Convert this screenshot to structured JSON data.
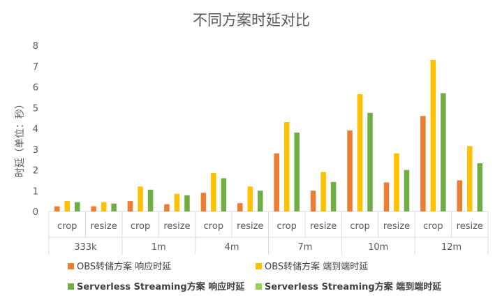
{
  "chart_data": {
    "type": "bar",
    "title": "不同方案时延对比",
    "ylabel": "时延（单位：秒）",
    "ylim": [
      0,
      8
    ],
    "yticks": [
      0,
      1,
      2,
      3,
      4,
      5,
      6,
      7,
      8
    ],
    "groups": [
      "333k",
      "1m",
      "4m",
      "7m",
      "10m",
      "12m"
    ],
    "subcategories": [
      "crop",
      "resize"
    ],
    "series": [
      {
        "name": "OBS转储方案 响应时延",
        "color": "#ED7D31",
        "values": [
          0.25,
          0.25,
          0.5,
          0.35,
          0.9,
          0.4,
          2.8,
          1.0,
          3.9,
          1.4,
          4.6,
          1.5
        ]
      },
      {
        "name": "OBS转储方案 端到端时延",
        "color": "#FFC000",
        "values": [
          0.5,
          0.45,
          1.2,
          0.85,
          1.85,
          1.2,
          4.3,
          1.9,
          5.65,
          2.8,
          7.3,
          3.15
        ]
      },
      {
        "name": "Serverless Streaming方案 响应时延",
        "color": "#70AD47",
        "values": [
          0.45,
          0.38,
          1.05,
          0.78,
          1.6,
          1.0,
          3.8,
          1.42,
          4.75,
          2.0,
          5.7,
          2.32
        ]
      },
      {
        "name": "Serverless Streaming方案 端到端时延",
        "color": "#92D050",
        "values": []
      }
    ],
    "legend_position": "bottom",
    "grid": false
  }
}
